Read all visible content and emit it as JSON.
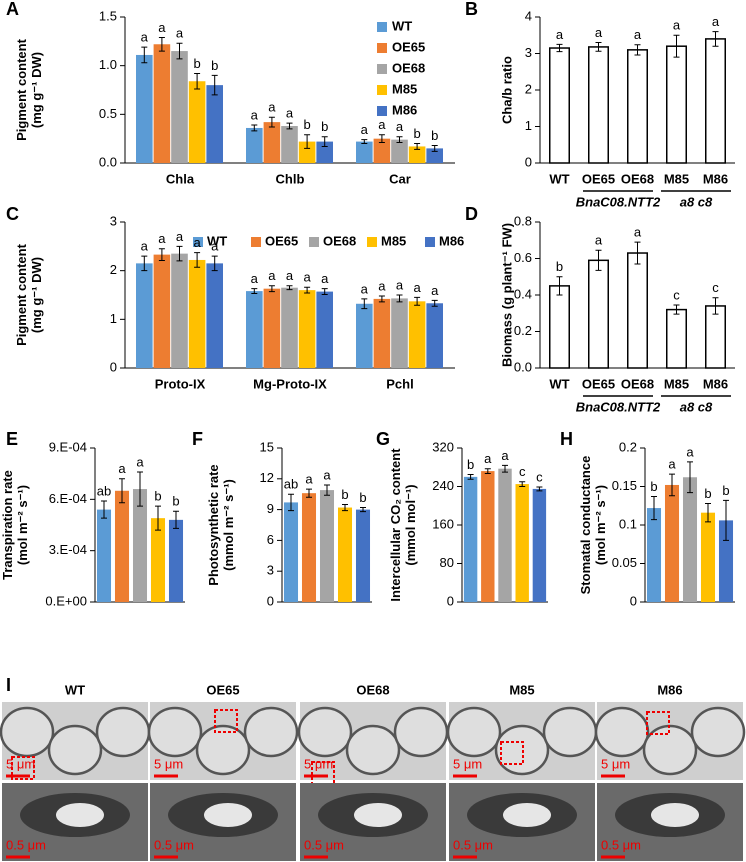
{
  "chart_data": [
    {
      "panel": "A",
      "type": "bar",
      "ylabel": [
        "Pigment content",
        "(mg g⁻¹ DW)"
      ],
      "categories": [
        "Chla",
        "Chlb",
        "Car"
      ],
      "legend": "upper right",
      "ylim": [
        0,
        1.5
      ],
      "yticks": [
        {
          "value": 0,
          "label": "0.0"
        },
        0.5,
        {
          "value": 1,
          "label": "1.0"
        },
        1.5
      ],
      "series": [
        {
          "name": "WT",
          "color": "#5b9bd5",
          "values": [
            1.11,
            0.36,
            0.22
          ],
          "errors": [
            0.08,
            0.03,
            0.02
          ],
          "letters": [
            "a",
            "a",
            "a"
          ]
        },
        {
          "name": "OE65",
          "color": "#ed7d31",
          "values": [
            1.22,
            0.42,
            0.25
          ],
          "errors": [
            0.07,
            0.05,
            0.04
          ],
          "letters": [
            "a",
            "a",
            "a"
          ]
        },
        {
          "name": "OE68",
          "color": "#a5a5a5",
          "values": [
            1.15,
            0.38,
            0.24
          ],
          "errors": [
            0.08,
            0.03,
            0.03
          ],
          "letters": [
            "a",
            "a",
            "a"
          ]
        },
        {
          "name": "M85",
          "color": "#ffc000",
          "values": [
            0.84,
            0.22,
            0.17
          ],
          "errors": [
            0.08,
            0.07,
            0.03
          ],
          "letters": [
            "b",
            "b",
            "b"
          ]
        },
        {
          "name": "M86",
          "color": "#4472c4",
          "values": [
            0.8,
            0.22,
            0.15
          ],
          "errors": [
            0.1,
            0.05,
            0.03
          ],
          "letters": [
            "b",
            "b",
            "b"
          ]
        }
      ]
    },
    {
      "panel": "B",
      "type": "bar",
      "ylabel": [
        "Cha/b ratio"
      ],
      "categories": [
        "WT",
        "OE65",
        "OE68",
        "M85",
        "M86"
      ],
      "values": [
        3.15,
        3.18,
        3.1,
        3.2,
        3.4
      ],
      "errors": [
        0.1,
        0.12,
        0.14,
        0.3,
        0.2
      ],
      "letters": [
        "a",
        "a",
        "a",
        "a",
        "a"
      ],
      "color": "#ffffff",
      "edgecolor": "#000000",
      "ylim": [
        0,
        4
      ],
      "yticks": [
        0,
        1,
        2,
        3,
        4
      ],
      "groups": [
        {
          "label": "BnaC08.NTT2",
          "categories": [
            "OE65",
            "OE68"
          ]
        },
        {
          "label": "a8 c8",
          "categories": [
            "M85",
            "M86"
          ]
        }
      ]
    },
    {
      "panel": "C",
      "type": "bar",
      "ylabel": [
        "Pigment content",
        "(mg g⁻¹ DW)"
      ],
      "categories": [
        "Proto-IX",
        "Mg-Proto-IX",
        "Pchl"
      ],
      "legend": "top",
      "ylim": [
        0,
        3
      ],
      "yticks": [
        0,
        1,
        2,
        3
      ],
      "series": [
        {
          "name": "WT",
          "color": "#5b9bd5",
          "values": [
            2.15,
            1.58,
            1.32
          ],
          "errors": [
            0.15,
            0.05,
            0.1
          ],
          "letters": [
            "a",
            "a",
            "a"
          ]
        },
        {
          "name": "OE65",
          "color": "#ed7d31",
          "values": [
            2.33,
            1.63,
            1.42
          ],
          "errors": [
            0.12,
            0.06,
            0.06
          ],
          "letters": [
            "a",
            "a",
            "a"
          ]
        },
        {
          "name": "OE68",
          "color": "#a5a5a5",
          "values": [
            2.35,
            1.65,
            1.43
          ],
          "errors": [
            0.15,
            0.04,
            0.07
          ],
          "letters": [
            "a",
            "a",
            "a"
          ]
        },
        {
          "name": "M85",
          "color": "#ffc000",
          "values": [
            2.22,
            1.6,
            1.37
          ],
          "errors": [
            0.15,
            0.06,
            0.08
          ],
          "letters": [
            "a",
            "a",
            "a"
          ]
        },
        {
          "name": "M86",
          "color": "#4472c4",
          "values": [
            2.15,
            1.57,
            1.33
          ],
          "errors": [
            0.15,
            0.06,
            0.06
          ],
          "letters": [
            "a",
            "a",
            "a"
          ]
        }
      ]
    },
    {
      "panel": "D",
      "type": "bar",
      "ylabel": [
        "Biomass (g plant⁻¹ FW)"
      ],
      "categories": [
        "WT",
        "OE65",
        "OE68",
        "M85",
        "M86"
      ],
      "values": [
        0.45,
        0.59,
        0.63,
        0.32,
        0.34
      ],
      "errors": [
        0.05,
        0.055,
        0.06,
        0.025,
        0.045
      ],
      "letters": [
        "b",
        "a",
        "a",
        "c",
        "c"
      ],
      "color": "#ffffff",
      "edgecolor": "#000000",
      "ylim": [
        0,
        0.8
      ],
      "yticks": [
        {
          "value": 0,
          "label": "0.0"
        },
        0.2,
        0.4,
        0.6,
        0.8
      ],
      "groups": [
        {
          "label": "BnaC08.NTT2",
          "categories": [
            "OE65",
            "OE68"
          ]
        },
        {
          "label": "a8 c8",
          "categories": [
            "M85",
            "M86"
          ]
        }
      ]
    },
    {
      "panel": "E",
      "type": "bar",
      "ylabel": [
        "Transpiration rate",
        "(mol m⁻² s⁻¹)"
      ],
      "categories": [
        null,
        null,
        null,
        null,
        null
      ],
      "values": [
        0.00054,
        0.00065,
        0.00066,
        0.00049,
        0.00048
      ],
      "errors": [
        5e-05,
        7e-05,
        0.0001,
        7e-05,
        5e-05
      ],
      "letters": [
        "ab",
        "a",
        "a",
        "b",
        "b"
      ],
      "colors": [
        "#5b9bd5",
        "#ed7d31",
        "#a5a5a5",
        "#ffc000",
        "#4472c4"
      ],
      "ylim": [
        0,
        0.0009
      ],
      "yticks": [
        {
          "value": 0,
          "label": "0.E+00"
        },
        {
          "value": 0.0003,
          "label": "3.E-04"
        },
        {
          "value": 0.0006,
          "label": "6.E-04"
        },
        {
          "value": 0.0009,
          "label": "9.E-04"
        }
      ]
    },
    {
      "panel": "F",
      "type": "bar",
      "ylabel": [
        "Photosynthetic rate",
        "(mmol m⁻² s⁻¹)"
      ],
      "categories": [
        null,
        null,
        null,
        null,
        null
      ],
      "values": [
        9.7,
        10.6,
        10.9,
        9.2,
        9.0
      ],
      "errors": [
        0.8,
        0.4,
        0.5,
        0.3,
        0.2
      ],
      "letters": [
        "ab",
        "a",
        "a",
        "b",
        "b"
      ],
      "colors": [
        "#5b9bd5",
        "#ed7d31",
        "#a5a5a5",
        "#ffc000",
        "#4472c4"
      ],
      "ylim": [
        0,
        15
      ],
      "yticks": [
        0,
        3,
        6,
        9,
        12,
        15
      ]
    },
    {
      "panel": "G",
      "type": "bar",
      "ylabel": [
        "Intercellular CO₂ content",
        "(mmol mol⁻¹)"
      ],
      "categories": [
        null,
        null,
        null,
        null,
        null
      ],
      "values": [
        260,
        272,
        277,
        245,
        235
      ],
      "errors": [
        5,
        5,
        7,
        5,
        4
      ],
      "letters": [
        "b",
        "a",
        "a",
        "c",
        "c"
      ],
      "colors": [
        "#5b9bd5",
        "#ed7d31",
        "#a5a5a5",
        "#ffc000",
        "#4472c4"
      ],
      "ylim": [
        0,
        320
      ],
      "yticks": [
        0,
        80,
        160,
        240,
        320
      ]
    },
    {
      "panel": "H",
      "type": "bar",
      "ylabel": [
        "Stomatal conductance",
        "(mol m⁻² s⁻¹)"
      ],
      "categories": [
        null,
        null,
        null,
        null,
        null
      ],
      "values": [
        0.122,
        0.152,
        0.162,
        0.116,
        0.106
      ],
      "errors": [
        0.015,
        0.014,
        0.02,
        0.012,
        0.026
      ],
      "letters": [
        "b",
        "a",
        "a",
        "b",
        "b"
      ],
      "colors": [
        "#5b9bd5",
        "#ed7d31",
        "#a5a5a5",
        "#ffc000",
        "#4472c4"
      ],
      "ylim": [
        0,
        0.2
      ],
      "yticks": [
        0,
        0.05,
        0.1,
        0.15,
        0.2
      ]
    }
  ],
  "micrographs": {
    "panel": "I",
    "columns": [
      "WT",
      "OE65",
      "OE68",
      "M85",
      "M86"
    ],
    "scale_top": "5 μm",
    "scale_bottom": "0.5 μm"
  }
}
